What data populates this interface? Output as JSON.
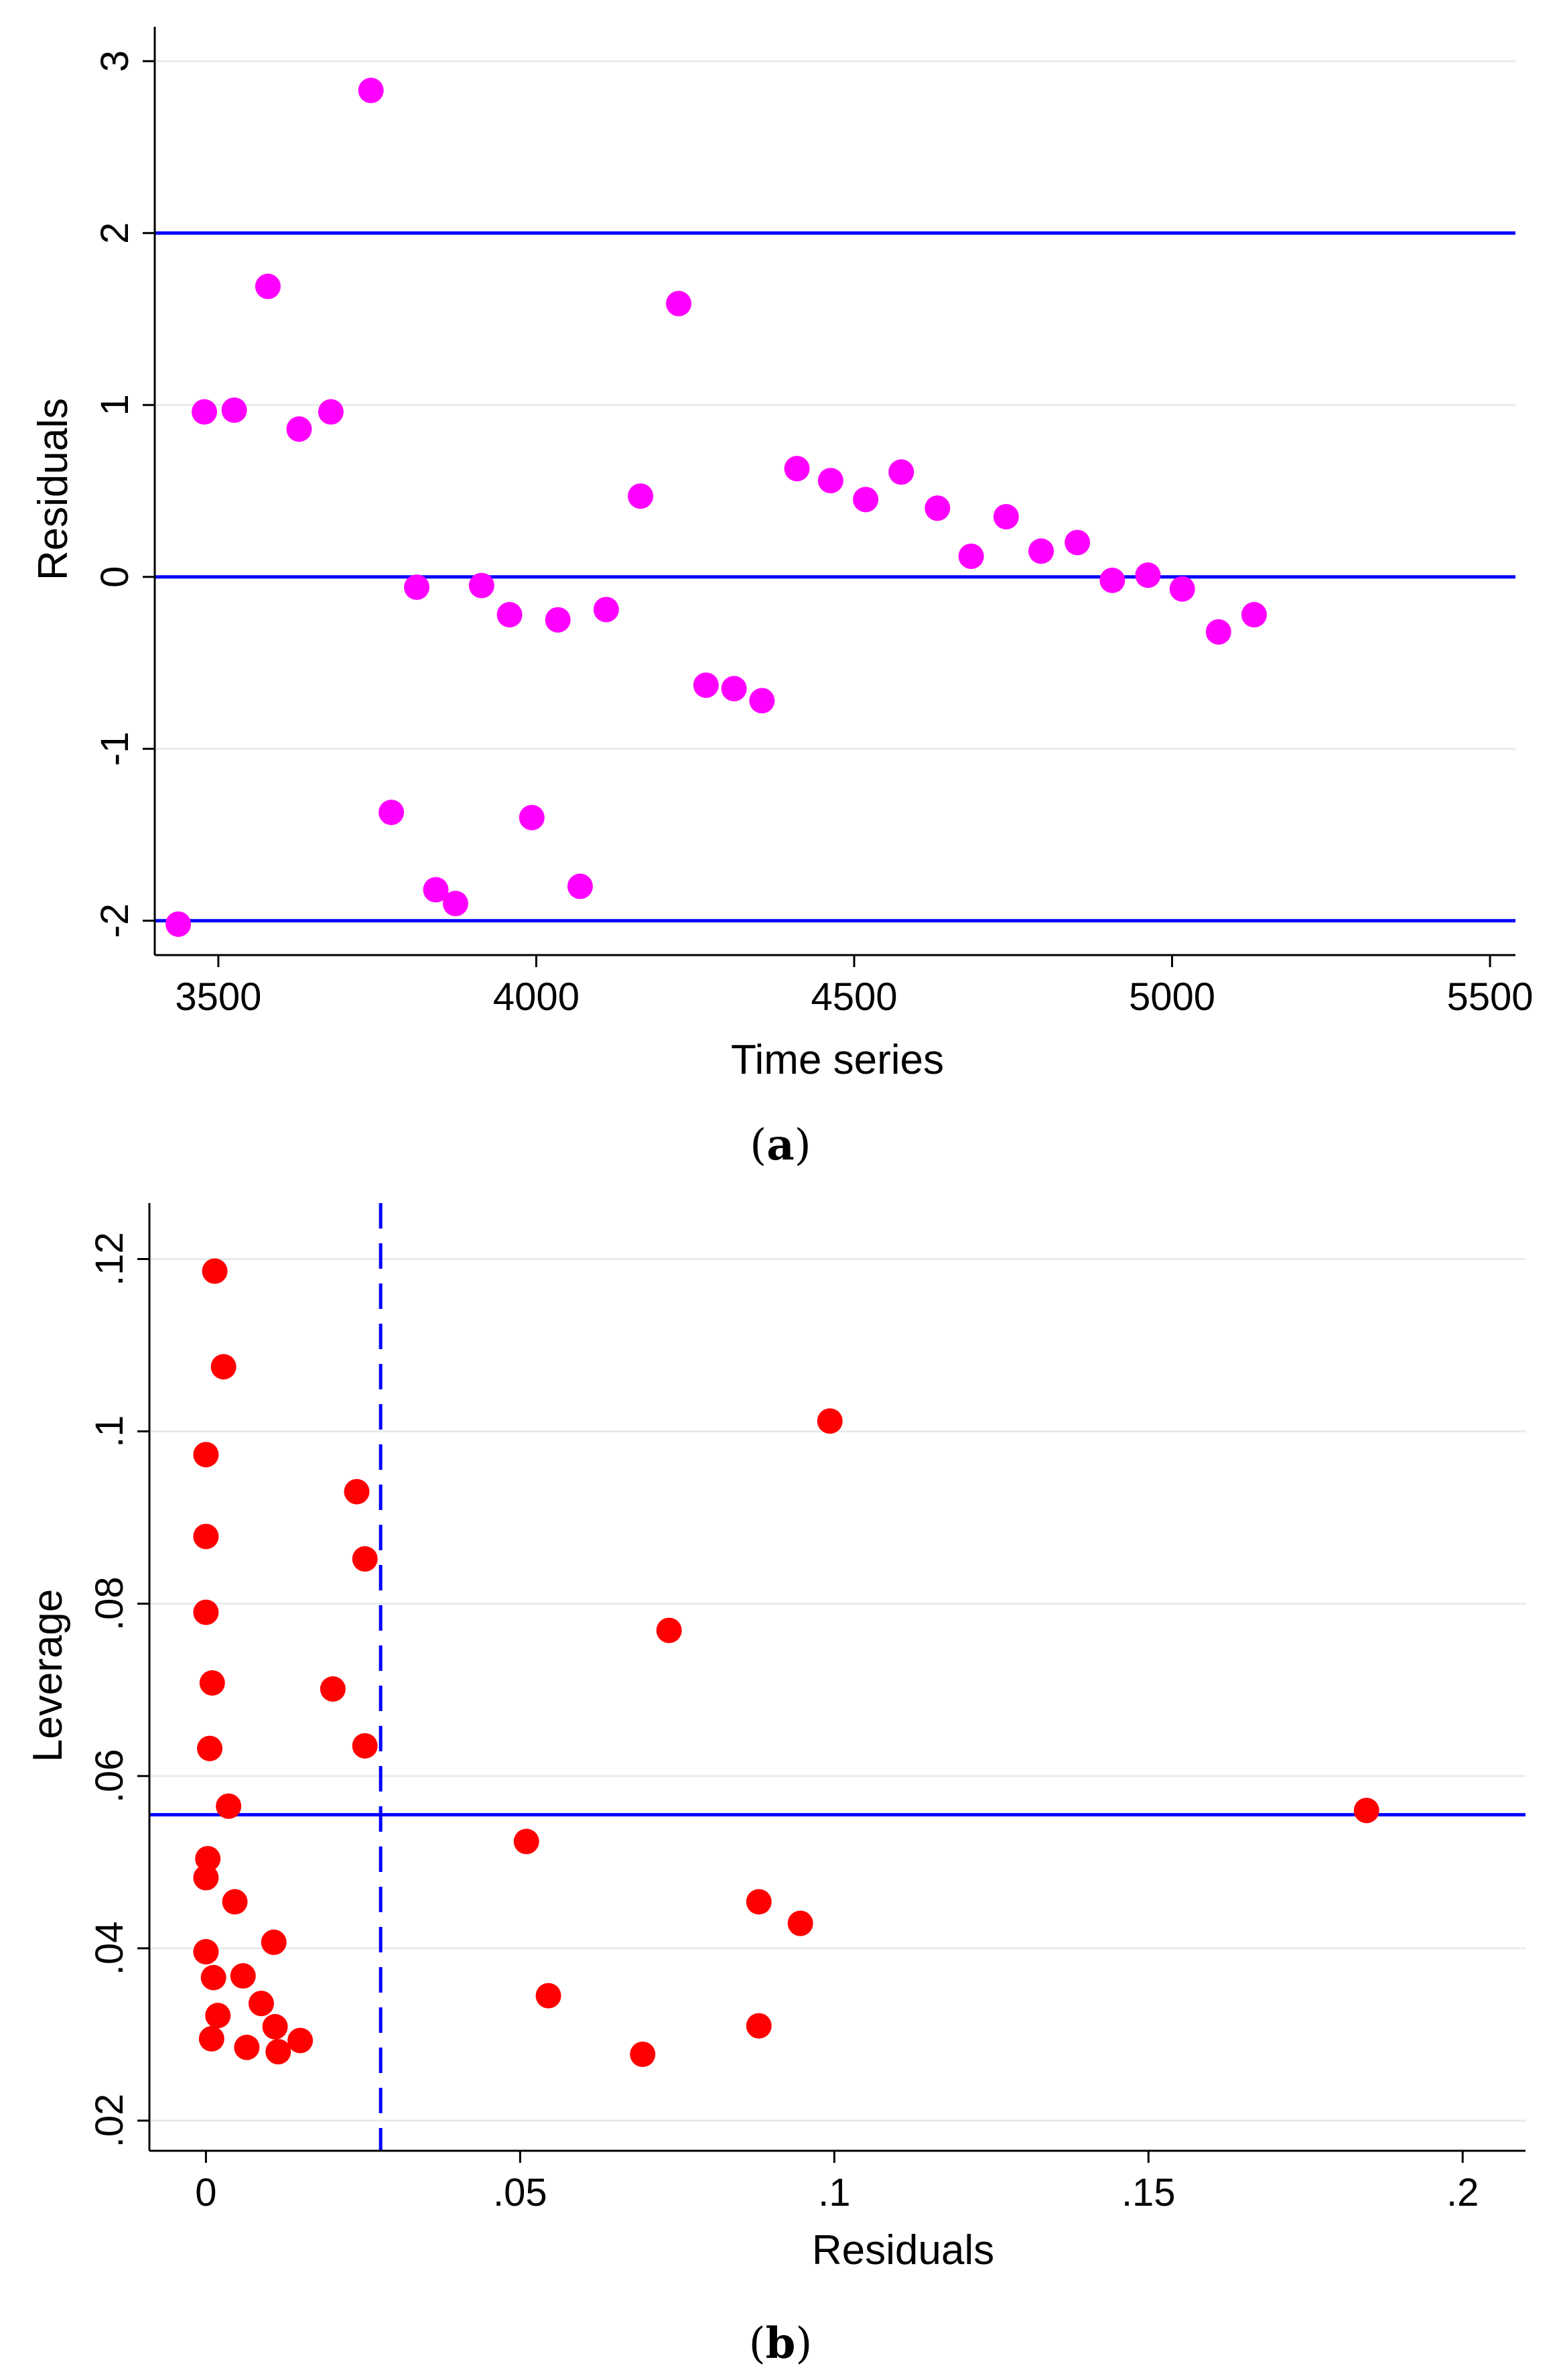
{
  "chart_data": [
    {
      "type": "scatter",
      "panel": "a",
      "caption_letter": "a",
      "xlabel": "Time series",
      "ylabel": "Residuals",
      "xlim": [
        3400,
        5540
      ],
      "ylim": [
        -2.2,
        3.2
      ],
      "x_ticks": [
        3500,
        4000,
        4500,
        5000,
        5500
      ],
      "x_tick_labels": [
        "3500",
        "4000",
        "4500",
        "5000",
        "5500"
      ],
      "y_ticks": [
        -2,
        -1,
        0,
        1,
        2,
        3
      ],
      "y_tick_labels": [
        "-2",
        "-1",
        "0",
        "1",
        "2",
        "3"
      ],
      "grid": true,
      "marker_color": "#ff00ff",
      "reference_lines": [
        {
          "axis": "y",
          "value": 2,
          "style": "solid",
          "color": "#0000ff"
        },
        {
          "axis": "y",
          "value": 0,
          "style": "solid",
          "color": "#0000ff"
        },
        {
          "axis": "y",
          "value": -2,
          "style": "solid",
          "color": "#0000ff"
        }
      ],
      "points": [
        {
          "x": 3437,
          "y": -2.02
        },
        {
          "x": 3478,
          "y": 0.96
        },
        {
          "x": 3525,
          "y": 0.97
        },
        {
          "x": 3578,
          "y": 1.69
        },
        {
          "x": 3627,
          "y": 0.86
        },
        {
          "x": 3677,
          "y": 0.96
        },
        {
          "x": 3740,
          "y": 2.83
        },
        {
          "x": 3772,
          "y": -1.37
        },
        {
          "x": 3812,
          "y": -0.06
        },
        {
          "x": 3842,
          "y": -1.82
        },
        {
          "x": 3873,
          "y": -1.9
        },
        {
          "x": 3914,
          "y": -0.05
        },
        {
          "x": 3958,
          "y": -0.22
        },
        {
          "x": 3993,
          "y": -1.4
        },
        {
          "x": 4034,
          "y": -0.25
        },
        {
          "x": 4069,
          "y": -1.8
        },
        {
          "x": 4110,
          "y": -0.19
        },
        {
          "x": 4164,
          "y": 0.47
        },
        {
          "x": 4224,
          "y": 1.59
        },
        {
          "x": 4267,
          "y": -0.63
        },
        {
          "x": 4311,
          "y": -0.65
        },
        {
          "x": 4355,
          "y": -0.72
        },
        {
          "x": 4410,
          "y": 0.63
        },
        {
          "x": 4463,
          "y": 0.56
        },
        {
          "x": 4518,
          "y": 0.45
        },
        {
          "x": 4574,
          "y": 0.61
        },
        {
          "x": 4631,
          "y": 0.4
        },
        {
          "x": 4684,
          "y": 0.12
        },
        {
          "x": 4739,
          "y": 0.35
        },
        {
          "x": 4794,
          "y": 0.15
        },
        {
          "x": 4851,
          "y": 0.2
        },
        {
          "x": 4906,
          "y": -0.02
        },
        {
          "x": 4962,
          "y": 0.01
        },
        {
          "x": 5016,
          "y": -0.07
        },
        {
          "x": 5073,
          "y": -0.32
        },
        {
          "x": 5129,
          "y": -0.22
        }
      ]
    },
    {
      "type": "scatter",
      "panel": "b",
      "caption_letter": "b",
      "xlabel": "Residuals",
      "ylabel": "Leverage",
      "xlim": [
        -0.009,
        0.21
      ],
      "ylim": [
        0.0165,
        0.1265
      ],
      "x_ticks": [
        0,
        0.05,
        0.1,
        0.15,
        0.2
      ],
      "x_tick_labels": [
        "0",
        ".05",
        ".1",
        ".15",
        ".2"
      ],
      "y_ticks": [
        0.02,
        0.04,
        0.06,
        0.08,
        0.1,
        0.12
      ],
      "y_tick_labels": [
        ".02",
        ".04",
        ".06",
        ".08",
        ".1",
        ".12"
      ],
      "grid": true,
      "marker_color": "#ff0000",
      "reference_lines": [
        {
          "axis": "x",
          "value": 0.0278,
          "style": "dashed",
          "color": "#0000ff"
        },
        {
          "axis": "y",
          "value": 0.0555,
          "style": "solid",
          "color": "#0000ff"
        }
      ],
      "points": [
        {
          "x": 0.0014,
          "y": 0.1186
        },
        {
          "x": 0.0028,
          "y": 0.1075
        },
        {
          "x": 0.0,
          "y": 0.0973
        },
        {
          "x": 0.0,
          "y": 0.0878
        },
        {
          "x": 0.0,
          "y": 0.079
        },
        {
          "x": 0.001,
          "y": 0.0708
        },
        {
          "x": 0.0006,
          "y": 0.0632
        },
        {
          "x": 0.0036,
          "y": 0.0565
        },
        {
          "x": 0.0003,
          "y": 0.0504
        },
        {
          "x": 0.0,
          "y": 0.0482
        },
        {
          "x": 0.0046,
          "y": 0.0454
        },
        {
          "x": 0.0108,
          "y": 0.0407
        },
        {
          "x": 0.0,
          "y": 0.0396
        },
        {
          "x": 0.0012,
          "y": 0.0366
        },
        {
          "x": 0.0059,
          "y": 0.0368
        },
        {
          "x": 0.0088,
          "y": 0.0336
        },
        {
          "x": 0.0019,
          "y": 0.0322
        },
        {
          "x": 0.011,
          "y": 0.0309
        },
        {
          "x": 0.015,
          "y": 0.0293
        },
        {
          "x": 0.0009,
          "y": 0.0295
        },
        {
          "x": 0.0065,
          "y": 0.0285
        },
        {
          "x": 0.0115,
          "y": 0.028
        },
        {
          "x": 0.024,
          "y": 0.093
        },
        {
          "x": 0.0253,
          "y": 0.0852
        },
        {
          "x": 0.0202,
          "y": 0.0701
        },
        {
          "x": 0.0253,
          "y": 0.0635
        },
        {
          "x": 0.051,
          "y": 0.0524
        },
        {
          "x": 0.0545,
          "y": 0.0345
        },
        {
          "x": 0.0695,
          "y": 0.0277
        },
        {
          "x": 0.0737,
          "y": 0.0769
        },
        {
          "x": 0.088,
          "y": 0.0454
        },
        {
          "x": 0.088,
          "y": 0.031
        },
        {
          "x": 0.0946,
          "y": 0.0429
        },
        {
          "x": 0.0993,
          "y": 0.1012
        },
        {
          "x": 0.1847,
          "y": 0.056
        }
      ]
    }
  ]
}
